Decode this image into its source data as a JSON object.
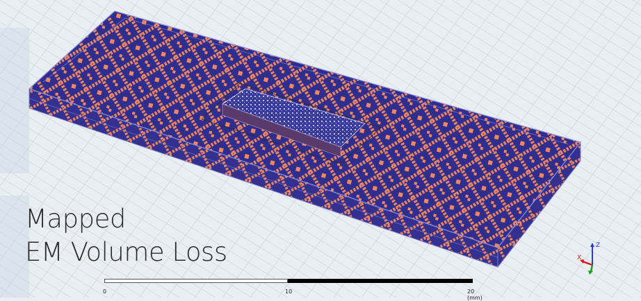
{
  "overlay": {
    "line1": "Mapped",
    "line2": "EM Volume Loss"
  },
  "scale_bar": {
    "ticks": [
      "0",
      "10",
      "20 (mm)"
    ]
  },
  "axis_triad": {
    "z_label": "Z",
    "x_label": "X",
    "colors": {
      "z": "#2a3bd6",
      "x": "#e01616",
      "y": "#18a018"
    }
  },
  "colors": {
    "background": "#e9eef2",
    "grid": "#c9d3dc",
    "loss_low": "#2f2d8e",
    "loss_high": "#f0875e",
    "edge": "#7a7fd0"
  },
  "icons": [
    "axis-triad-icon"
  ]
}
